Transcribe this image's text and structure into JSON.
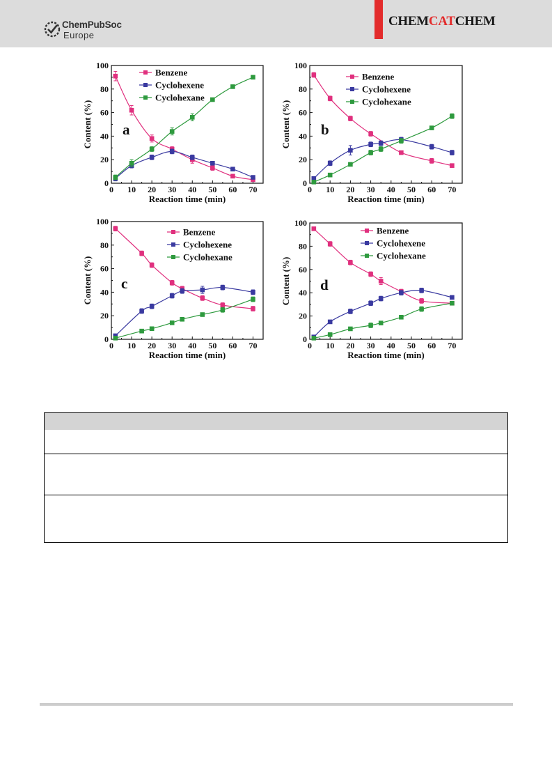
{
  "header": {
    "publisher_name": "ChemPubSoc",
    "publisher_sub": "Europe",
    "journal_parts": [
      "CHEM",
      "CAT",
      "CHEM"
    ],
    "accent_color": "#e32b2b",
    "band_color": "#dcdcdc"
  },
  "colors": {
    "benzene": "#e0307e",
    "cyclohexene": "#3a3aa0",
    "cyclohexane": "#2e9a3e"
  },
  "chart_data": [
    {
      "type": "line",
      "panel_label": "a",
      "xlabel": "Reaction time (min)",
      "ylabel": "Content (%)",
      "xlim": [
        0,
        75
      ],
      "ylim": [
        0,
        100
      ],
      "xticks": [
        0,
        10,
        20,
        30,
        40,
        50,
        60,
        70
      ],
      "yticks": [
        0,
        20,
        40,
        60,
        80,
        100
      ],
      "legend": "top-left",
      "error_bars": true,
      "series": [
        {
          "name": "Benzene",
          "x": [
            2,
            10,
            20,
            30,
            40,
            50,
            60,
            70
          ],
          "y": [
            91,
            62,
            38,
            29,
            20,
            13,
            6,
            3
          ],
          "err": [
            4,
            4,
            3,
            2,
            3,
            2,
            1,
            1
          ]
        },
        {
          "name": "Cyclohexene",
          "x": [
            2,
            10,
            20,
            30,
            40,
            50,
            60,
            70
          ],
          "y": [
            4,
            15,
            22,
            27,
            22,
            17,
            12,
            5
          ],
          "err": [
            2,
            2,
            2,
            2,
            2,
            1,
            1,
            1
          ]
        },
        {
          "name": "Cyclohexane",
          "x": [
            2,
            10,
            20,
            30,
            40,
            50,
            60,
            70
          ],
          "y": [
            5,
            17,
            29,
            44,
            56,
            71,
            82,
            90
          ],
          "err": [
            2,
            3,
            2,
            3,
            3,
            1,
            1,
            1
          ]
        }
      ]
    },
    {
      "type": "line",
      "panel_label": "b",
      "xlabel": "Reaction time (min)",
      "ylabel": "Content (%)",
      "xlim": [
        0,
        75
      ],
      "ylim": [
        0,
        100
      ],
      "xticks": [
        0,
        10,
        20,
        30,
        40,
        50,
        60,
        70
      ],
      "yticks": [
        0,
        20,
        40,
        60,
        80,
        100
      ],
      "legend": "top-left",
      "error_bars": true,
      "series": [
        {
          "name": "Benzene",
          "x": [
            2,
            10,
            20,
            30,
            45,
            60,
            70
          ],
          "y": [
            92,
            72,
            55,
            42,
            26,
            19,
            15
          ],
          "err": [
            2,
            2,
            2,
            2,
            1,
            2,
            1
          ]
        },
        {
          "name": "Cyclohexene",
          "x": [
            2,
            10,
            20,
            30,
            35,
            45,
            60,
            70
          ],
          "y": [
            4,
            17,
            28,
            33,
            34,
            37,
            31,
            26
          ],
          "err": [
            1,
            2,
            4,
            2,
            2,
            2,
            2,
            2
          ]
        },
        {
          "name": "Cyclohexane",
          "x": [
            2,
            10,
            20,
            30,
            35,
            45,
            60,
            70
          ],
          "y": [
            1,
            7,
            16,
            26,
            29,
            36,
            47,
            57
          ],
          "err": [
            1,
            1,
            1,
            2,
            2,
            2,
            1,
            2
          ]
        }
      ]
    },
    {
      "type": "line",
      "panel_label": "c",
      "xlabel": "Reaction time (min)",
      "ylabel": "Content (%)",
      "xlim": [
        0,
        75
      ],
      "ylim": [
        0,
        100
      ],
      "xticks": [
        0,
        10,
        20,
        30,
        40,
        50,
        60,
        70
      ],
      "yticks": [
        0,
        20,
        40,
        60,
        80,
        100
      ],
      "legend": "top-right",
      "error_bars": true,
      "series": [
        {
          "name": "Benzene",
          "x": [
            2,
            15,
            20,
            30,
            35,
            45,
            55,
            70
          ],
          "y": [
            94,
            73,
            63,
            48,
            43,
            35,
            29,
            26
          ],
          "err": [
            2,
            2,
            2,
            2,
            2,
            2,
            2,
            2
          ]
        },
        {
          "name": "Cyclohexene",
          "x": [
            2,
            15,
            20,
            30,
            35,
            45,
            55,
            70
          ],
          "y": [
            3,
            24,
            28,
            37,
            41,
            42,
            44,
            40
          ],
          "err": [
            1,
            2,
            2,
            2,
            2,
            3,
            2,
            2
          ]
        },
        {
          "name": "Cyclohexane",
          "x": [
            2,
            15,
            20,
            30,
            35,
            45,
            55,
            70
          ],
          "y": [
            1,
            7,
            9,
            14,
            17,
            21,
            25,
            34
          ],
          "err": [
            1,
            1,
            1,
            1,
            1,
            1,
            2,
            2
          ]
        }
      ]
    },
    {
      "type": "line",
      "panel_label": "d",
      "xlabel": "Reaction time (min)",
      "ylabel": "Content (%)",
      "xlim": [
        0,
        75
      ],
      "ylim": [
        0,
        100
      ],
      "xticks": [
        0,
        10,
        20,
        30,
        40,
        50,
        60,
        70
      ],
      "yticks": [
        0,
        20,
        40,
        60,
        80,
        100
      ],
      "legend": "top-right",
      "error_bars": true,
      "series": [
        {
          "name": "Benzene",
          "x": [
            2,
            10,
            20,
            30,
            35,
            45,
            55,
            70
          ],
          "y": [
            95,
            82,
            66,
            56,
            50,
            41,
            33,
            31
          ],
          "err": [
            1,
            2,
            2,
            2,
            3,
            2,
            2,
            1
          ]
        },
        {
          "name": "Cyclohexene",
          "x": [
            2,
            10,
            20,
            30,
            35,
            45,
            55,
            70
          ],
          "y": [
            2,
            15,
            24,
            31,
            35,
            40,
            42,
            36
          ],
          "err": [
            1,
            1,
            2,
            2,
            2,
            2,
            2,
            1
          ]
        },
        {
          "name": "Cyclohexane",
          "x": [
            2,
            10,
            20,
            30,
            35,
            45,
            55,
            70
          ],
          "y": [
            1,
            4,
            9,
            12,
            14,
            19,
            26,
            31
          ],
          "err": [
            1,
            1,
            1,
            2,
            1,
            1,
            2,
            1
          ]
        }
      ]
    }
  ]
}
